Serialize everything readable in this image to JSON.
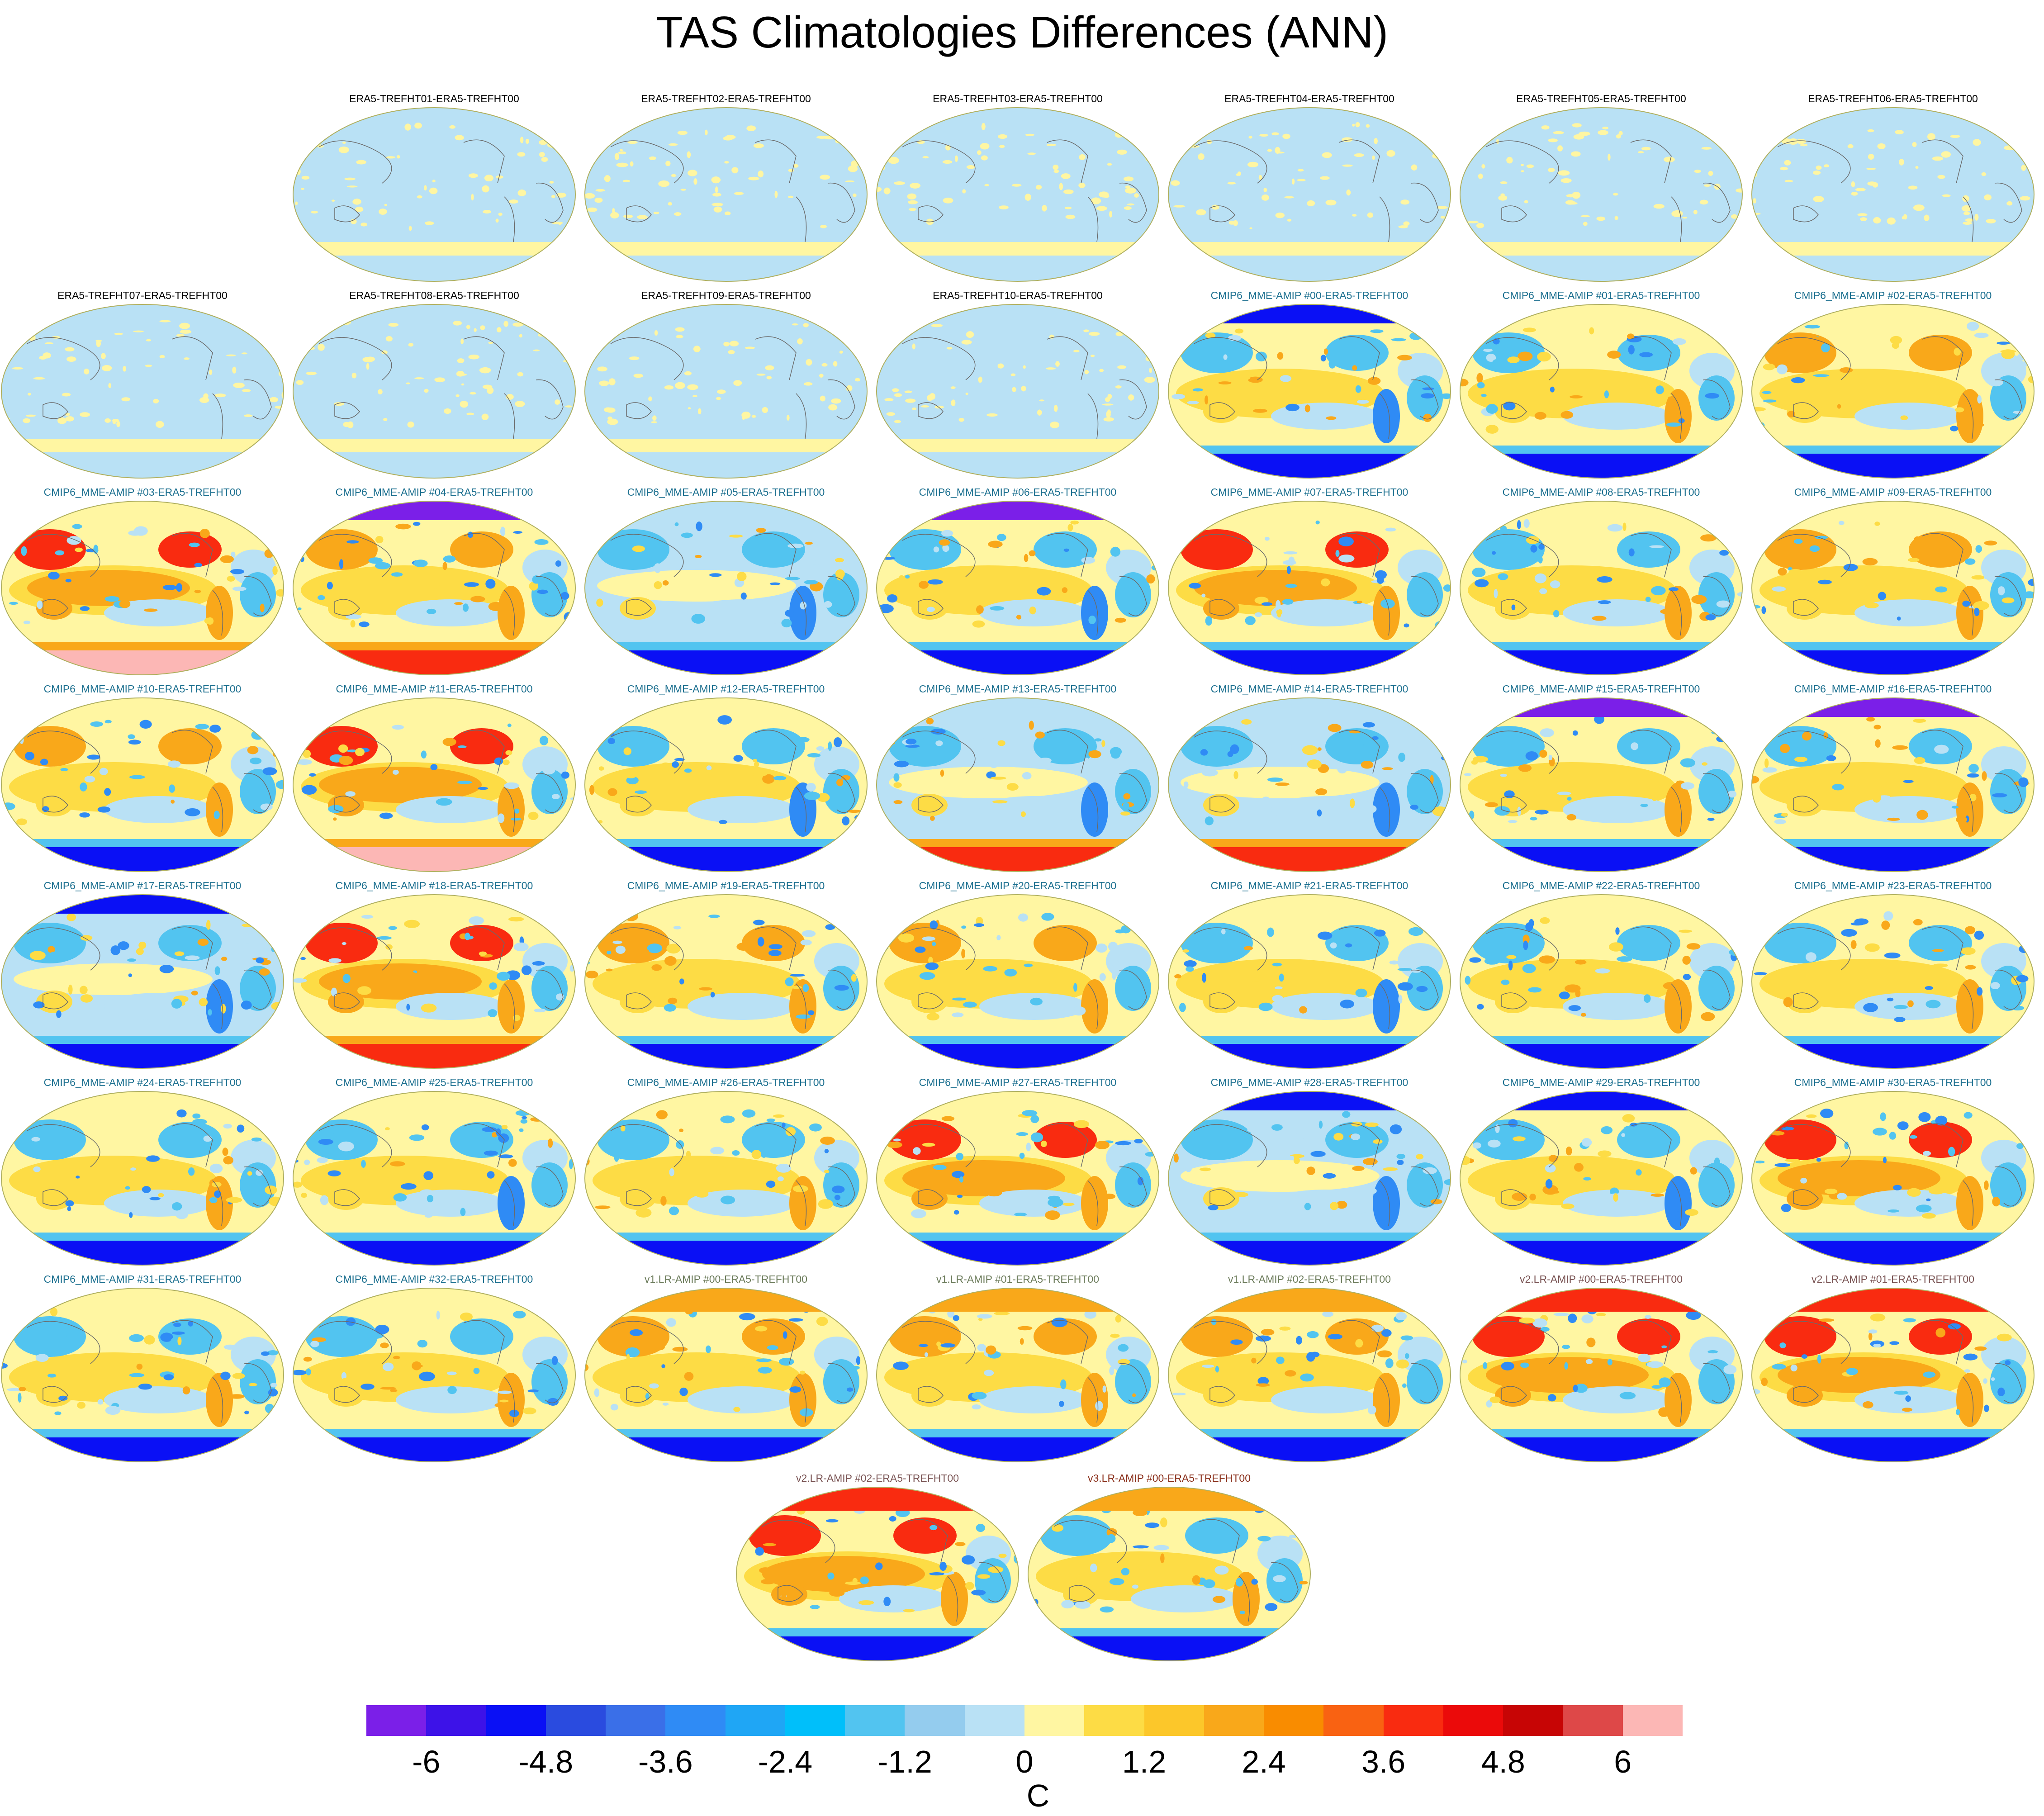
{
  "title": "TAS Climatologies Differences (ANN)",
  "colorbar": {
    "unit": "C",
    "tick_labels": [
      "-6",
      "-4.8",
      "-3.6",
      "-2.4",
      "-1.2",
      "0",
      "1.2",
      "2.4",
      "3.6",
      "4.8",
      "6"
    ],
    "colors": [
      "#7B1FE8",
      "#3D12E8",
      "#0A10F5",
      "#2A4BDF",
      "#3A6FE8",
      "#2F8BF5",
      "#1FA6F5",
      "#00BFFA",
      "#52C4F0",
      "#94CCEE",
      "#B9E1F5",
      "#FFF6A2",
      "#FDDC45",
      "#FCC72A",
      "#F9A81A",
      "#F98C00",
      "#F96212",
      "#F92B10",
      "#EB0A0A",
      "#C70505",
      "#DE4848",
      "#FCB7B5"
    ]
  },
  "panels": [
    {
      "label": "ERA5-TREFHT01-ERA5-TREFHT00",
      "group": "era5",
      "warm": 0.2,
      "arcticCold": 0.0,
      "antarctic": "flat"
    },
    {
      "label": "ERA5-TREFHT02-ERA5-TREFHT00",
      "group": "era5",
      "warm": 0.2,
      "arcticCold": 0.0,
      "antarctic": "flat"
    },
    {
      "label": "ERA5-TREFHT03-ERA5-TREFHT00",
      "group": "era5",
      "warm": 0.2,
      "arcticCold": 0.0,
      "antarctic": "flat"
    },
    {
      "label": "ERA5-TREFHT04-ERA5-TREFHT00",
      "group": "era5",
      "warm": 0.2,
      "arcticCold": 0.0,
      "antarctic": "flat"
    },
    {
      "label": "ERA5-TREFHT05-ERA5-TREFHT00",
      "group": "era5",
      "warm": 0.2,
      "arcticCold": 0.0,
      "antarctic": "flat"
    },
    {
      "label": "ERA5-TREFHT06-ERA5-TREFHT00",
      "group": "era5",
      "warm": 0.2,
      "arcticCold": 0.0,
      "antarctic": "flat"
    },
    {
      "label": "ERA5-TREFHT07-ERA5-TREFHT00",
      "group": "era5",
      "warm": 0.2,
      "arcticCold": 0.0,
      "antarctic": "flat"
    },
    {
      "label": "ERA5-TREFHT08-ERA5-TREFHT00",
      "group": "era5",
      "warm": 0.2,
      "arcticCold": 0.0,
      "antarctic": "flat"
    },
    {
      "label": "ERA5-TREFHT09-ERA5-TREFHT00",
      "group": "era5",
      "warm": 0.2,
      "arcticCold": 0.0,
      "antarctic": "flat"
    },
    {
      "label": "ERA5-TREFHT10-ERA5-TREFHT00",
      "group": "era5",
      "warm": 0.2,
      "arcticCold": 0.0,
      "antarctic": "flat"
    },
    {
      "label": "CMIP6_MME-AMIP  #00-ERA5-TREFHT00",
      "group": "cmip6",
      "warm": 0.5,
      "arcticCold": 0.9,
      "antarctic": "cold"
    },
    {
      "label": "CMIP6_MME-AMIP  #01-ERA5-TREFHT00",
      "group": "cmip6",
      "warm": 0.6,
      "arcticCold": 0.3,
      "antarctic": "cold"
    },
    {
      "label": "CMIP6_MME-AMIP  #02-ERA5-TREFHT00",
      "group": "cmip6",
      "warm": 0.7,
      "arcticCold": 0.3,
      "antarctic": "cold"
    },
    {
      "label": "CMIP6_MME-AMIP  #03-ERA5-TREFHT00",
      "group": "cmip6",
      "warm": 0.8,
      "arcticCold": 0.2,
      "antarctic": "warm"
    },
    {
      "label": "CMIP6_MME-AMIP  #04-ERA5-TREFHT00",
      "group": "cmip6",
      "warm": 0.7,
      "arcticCold": 1.0,
      "antarctic": "hot"
    },
    {
      "label": "CMIP6_MME-AMIP  #05-ERA5-TREFHT00",
      "group": "cmip6",
      "warm": 0.4,
      "arcticCold": 0.6,
      "antarctic": "cold"
    },
    {
      "label": "CMIP6_MME-AMIP  #06-ERA5-TREFHT00",
      "group": "cmip6",
      "warm": 0.5,
      "arcticCold": 1.0,
      "antarctic": "cold"
    },
    {
      "label": "CMIP6_MME-AMIP  #07-ERA5-TREFHT00",
      "group": "cmip6",
      "warm": 0.9,
      "arcticCold": 0.1,
      "antarctic": "cold"
    },
    {
      "label": "CMIP6_MME-AMIP  #08-ERA5-TREFHT00",
      "group": "cmip6",
      "warm": 0.6,
      "arcticCold": 0.4,
      "antarctic": "cold"
    },
    {
      "label": "CMIP6_MME-AMIP  #09-ERA5-TREFHT00",
      "group": "cmip6",
      "warm": 0.7,
      "arcticCold": 0.3,
      "antarctic": "cold"
    },
    {
      "label": "CMIP6_MME-AMIP  #10-ERA5-TREFHT00",
      "group": "cmip6",
      "warm": 0.7,
      "arcticCold": 0.2,
      "antarctic": "cold"
    },
    {
      "label": "CMIP6_MME-AMIP  #11-ERA5-TREFHT00",
      "group": "cmip6",
      "warm": 1.0,
      "arcticCold": 0.0,
      "antarctic": "warm"
    },
    {
      "label": "CMIP6_MME-AMIP  #12-ERA5-TREFHT00",
      "group": "cmip6",
      "warm": 0.5,
      "arcticCold": 0.2,
      "antarctic": "cold"
    },
    {
      "label": "CMIP6_MME-AMIP  #13-ERA5-TREFHT00",
      "group": "cmip6",
      "warm": 0.2,
      "arcticCold": 0.5,
      "antarctic": "hot"
    },
    {
      "label": "CMIP6_MME-AMIP  #14-ERA5-TREFHT00",
      "group": "cmip6",
      "warm": 0.3,
      "arcticCold": 0.5,
      "antarctic": "hot"
    },
    {
      "label": "CMIP6_MME-AMIP  #15-ERA5-TREFHT00",
      "group": "cmip6",
      "warm": 0.6,
      "arcticCold": 1.0,
      "antarctic": "cold"
    },
    {
      "label": "CMIP6_MME-AMIP  #16-ERA5-TREFHT00",
      "group": "cmip6",
      "warm": 0.6,
      "arcticCold": 1.0,
      "antarctic": "cold"
    },
    {
      "label": "CMIP6_MME-AMIP  #17-ERA5-TREFHT00",
      "group": "cmip6",
      "warm": 0.4,
      "arcticCold": 0.7,
      "antarctic": "cold"
    },
    {
      "label": "CMIP6_MME-AMIP  #18-ERA5-TREFHT00",
      "group": "cmip6",
      "warm": 1.0,
      "arcticCold": 0.0,
      "antarctic": "hot"
    },
    {
      "label": "CMIP6_MME-AMIP  #19-ERA5-TREFHT00",
      "group": "cmip6",
      "warm": 0.7,
      "arcticCold": 0.1,
      "antarctic": "cold"
    },
    {
      "label": "CMIP6_MME-AMIP  #20-ERA5-TREFHT00",
      "group": "cmip6",
      "warm": 0.7,
      "arcticCold": 0.1,
      "antarctic": "cold"
    },
    {
      "label": "CMIP6_MME-AMIP  #21-ERA5-TREFHT00",
      "group": "cmip6",
      "warm": 0.5,
      "arcticCold": 0.3,
      "antarctic": "cold"
    },
    {
      "label": "CMIP6_MME-AMIP  #22-ERA5-TREFHT00",
      "group": "cmip6",
      "warm": 0.6,
      "arcticCold": 0.3,
      "antarctic": "cold"
    },
    {
      "label": "CMIP6_MME-AMIP  #23-ERA5-TREFHT00",
      "group": "cmip6",
      "warm": 0.6,
      "arcticCold": 0.2,
      "antarctic": "cold"
    },
    {
      "label": "CMIP6_MME-AMIP  #24-ERA5-TREFHT00",
      "group": "cmip6",
      "warm": 0.6,
      "arcticCold": 0.3,
      "antarctic": "cold"
    },
    {
      "label": "CMIP6_MME-AMIP  #25-ERA5-TREFHT00",
      "group": "cmip6",
      "warm": 0.5,
      "arcticCold": 0.6,
      "antarctic": "cold"
    },
    {
      "label": "CMIP6_MME-AMIP  #26-ERA5-TREFHT00",
      "group": "cmip6",
      "warm": 0.6,
      "arcticCold": 0.3,
      "antarctic": "cold"
    },
    {
      "label": "CMIP6_MME-AMIP  #27-ERA5-TREFHT00",
      "group": "cmip6",
      "warm": 0.8,
      "arcticCold": 0.2,
      "antarctic": "cold"
    },
    {
      "label": "CMIP6_MME-AMIP  #28-ERA5-TREFHT00",
      "group": "cmip6",
      "warm": 0.4,
      "arcticCold": 0.8,
      "antarctic": "cold"
    },
    {
      "label": "CMIP6_MME-AMIP  #29-ERA5-TREFHT00",
      "group": "cmip6",
      "warm": 0.5,
      "arcticCold": 0.7,
      "antarctic": "cold"
    },
    {
      "label": "CMIP6_MME-AMIP  #30-ERA5-TREFHT00",
      "group": "cmip6",
      "warm": 0.9,
      "arcticCold": 0.1,
      "antarctic": "cold"
    },
    {
      "label": "CMIP6_MME-AMIP  #31-ERA5-TREFHT00",
      "group": "cmip6",
      "warm": 0.6,
      "arcticCold": 0.4,
      "antarctic": "cold"
    },
    {
      "label": "CMIP6_MME-AMIP  #32-ERA5-TREFHT00",
      "group": "cmip6",
      "warm": 0.6,
      "arcticCold": 0.2,
      "antarctic": "cold"
    },
    {
      "label": "v1.LR-AMIP  #00-ERA5-TREFHT00",
      "group": "v1",
      "warm": 0.7,
      "arcticCold": 0.0,
      "antarctic": "cold"
    },
    {
      "label": "v1.LR-AMIP  #01-ERA5-TREFHT00",
      "group": "v1",
      "warm": 0.7,
      "arcticCold": 0.0,
      "antarctic": "cold"
    },
    {
      "label": "v1.LR-AMIP  #02-ERA5-TREFHT00",
      "group": "v1",
      "warm": 0.7,
      "arcticCold": 0.0,
      "antarctic": "cold"
    },
    {
      "label": "v2.LR-AMIP  #00-ERA5-TREFHT00",
      "group": "v2",
      "warm": 0.8,
      "arcticCold": 0.0,
      "antarctic": "cold"
    },
    {
      "label": "v2.LR-AMIP  #01-ERA5-TREFHT00",
      "group": "v2",
      "warm": 0.8,
      "arcticCold": 0.0,
      "antarctic": "cold"
    },
    {
      "label": "v2.LR-AMIP  #02-ERA5-TREFHT00",
      "group": "v2",
      "warm": 0.8,
      "arcticCold": 0.0,
      "antarctic": "cold"
    },
    {
      "label": "v3.LR-AMIP  #00-ERA5-TREFHT00",
      "group": "v3",
      "warm": 0.6,
      "arcticCold": 0.0,
      "antarctic": "cold"
    }
  ],
  "label_colors": {
    "era5": "#000000",
    "cmip6": "#1B6F8F",
    "v1": "#6B7B5A",
    "v2": "#7A5454",
    "v3": "#8A2F1A"
  }
}
